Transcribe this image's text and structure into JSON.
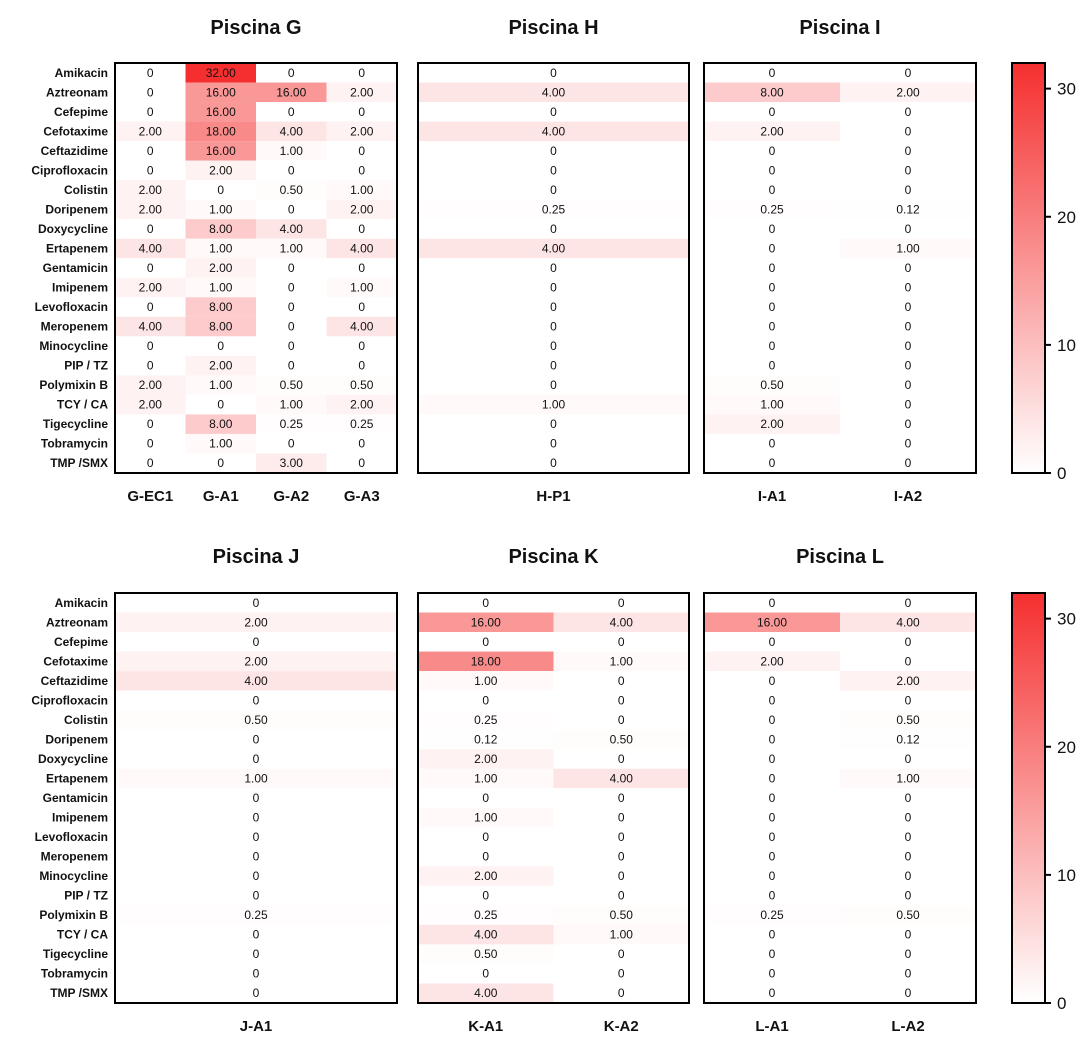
{
  "chart_data": {
    "type": "heatmap",
    "value_format": "two-decimal, zero shown as 0",
    "colormap": {
      "low": "#ffffff",
      "high": "#f52f2f"
    },
    "colorbar": {
      "range": [
        0,
        32
      ],
      "ticks": [
        0,
        10,
        20,
        30
      ]
    },
    "drugs": [
      "Amikacin",
      "Aztreonam",
      "Cefepime",
      "Cefotaxime",
      "Ceftazidime",
      "Ciprofloxacin",
      "Colistin",
      "Doripenem",
      "Doxycycline",
      "Ertapenem",
      "Gentamicin",
      "Imipenem",
      "Levofloxacin",
      "Meropenem",
      "Minocycline",
      "PIP / TZ",
      "Polymixin B",
      "TCY / CA",
      "Tigecycline",
      "Tobramycin",
      "TMP /SMX"
    ],
    "panels": [
      {
        "title": "Piscina G",
        "columns": [
          "G-EC1",
          "G-A1",
          "G-A2",
          "G-A3"
        ],
        "values": [
          [
            0,
            32,
            0,
            0
          ],
          [
            0,
            16,
            16,
            2
          ],
          [
            0,
            16,
            0,
            0
          ],
          [
            2,
            18,
            4,
            2
          ],
          [
            0,
            16,
            1,
            0
          ],
          [
            0,
            2,
            0,
            0
          ],
          [
            2,
            0,
            0.5,
            1
          ],
          [
            2,
            1,
            0,
            2
          ],
          [
            0,
            8,
            4,
            0
          ],
          [
            4,
            1,
            1,
            4
          ],
          [
            0,
            2,
            0,
            0
          ],
          [
            2,
            1,
            0,
            1
          ],
          [
            0,
            8,
            0,
            0
          ],
          [
            4,
            8,
            0,
            4
          ],
          [
            0,
            0,
            0,
            0
          ],
          [
            0,
            2,
            0,
            0
          ],
          [
            2,
            1,
            0.5,
            0.5
          ],
          [
            2,
            0,
            1,
            2
          ],
          [
            0,
            8,
            0.25,
            0.25
          ],
          [
            0,
            1,
            0,
            0
          ],
          [
            0,
            0,
            3,
            0
          ]
        ]
      },
      {
        "title": "Piscina H",
        "columns": [
          "H-P1"
        ],
        "values": [
          [
            0
          ],
          [
            4
          ],
          [
            0
          ],
          [
            4
          ],
          [
            0
          ],
          [
            0
          ],
          [
            0
          ],
          [
            0.25
          ],
          [
            0
          ],
          [
            4
          ],
          [
            0
          ],
          [
            0
          ],
          [
            0
          ],
          [
            0
          ],
          [
            0
          ],
          [
            0
          ],
          [
            0
          ],
          [
            1
          ],
          [
            0
          ],
          [
            0
          ],
          [
            0
          ]
        ]
      },
      {
        "title": "Piscina I",
        "columns": [
          "I-A1",
          "I-A2"
        ],
        "values": [
          [
            0,
            0
          ],
          [
            8,
            2
          ],
          [
            0,
            0
          ],
          [
            2,
            0
          ],
          [
            0,
            0
          ],
          [
            0,
            0
          ],
          [
            0,
            0
          ],
          [
            0.25,
            0.12
          ],
          [
            0,
            0
          ],
          [
            0,
            1
          ],
          [
            0,
            0
          ],
          [
            0,
            0
          ],
          [
            0,
            0
          ],
          [
            0,
            0
          ],
          [
            0,
            0
          ],
          [
            0,
            0
          ],
          [
            0.5,
            0
          ],
          [
            1,
            0
          ],
          [
            2,
            0
          ],
          [
            0,
            0
          ],
          [
            0,
            0
          ]
        ]
      },
      {
        "title": "Piscina J",
        "columns": [
          "J-A1"
        ],
        "values": [
          [
            0
          ],
          [
            2
          ],
          [
            0
          ],
          [
            2
          ],
          [
            4
          ],
          [
            0
          ],
          [
            0.5
          ],
          [
            0
          ],
          [
            0
          ],
          [
            1
          ],
          [
            0
          ],
          [
            0
          ],
          [
            0
          ],
          [
            0
          ],
          [
            0
          ],
          [
            0
          ],
          [
            0.25
          ],
          [
            0
          ],
          [
            0
          ],
          [
            0
          ],
          [
            0
          ]
        ]
      },
      {
        "title": "Piscina K",
        "columns": [
          "K-A1",
          "K-A2"
        ],
        "values": [
          [
            0,
            0
          ],
          [
            16,
            4
          ],
          [
            0,
            0
          ],
          [
            18,
            1
          ],
          [
            1,
            0
          ],
          [
            0,
            0
          ],
          [
            0.25,
            0
          ],
          [
            0.12,
            0.5
          ],
          [
            2,
            0
          ],
          [
            1,
            4
          ],
          [
            0,
            0
          ],
          [
            1,
            0
          ],
          [
            0,
            0
          ],
          [
            0,
            0
          ],
          [
            2,
            0
          ],
          [
            0,
            0
          ],
          [
            0.25,
            0.5
          ],
          [
            4,
            1
          ],
          [
            0.5,
            0
          ],
          [
            0,
            0
          ],
          [
            4,
            0
          ]
        ]
      },
      {
        "title": "Piscina L",
        "columns": [
          "L-A1",
          "L-A2"
        ],
        "values": [
          [
            0,
            0
          ],
          [
            16,
            4
          ],
          [
            0,
            0
          ],
          [
            2,
            0
          ],
          [
            0,
            2
          ],
          [
            0,
            0
          ],
          [
            0,
            0.5
          ],
          [
            0,
            0.12
          ],
          [
            0,
            0
          ],
          [
            0,
            1
          ],
          [
            0,
            0
          ],
          [
            0,
            0
          ],
          [
            0,
            0
          ],
          [
            0,
            0
          ],
          [
            0,
            0
          ],
          [
            0,
            0
          ],
          [
            0.25,
            0.5
          ],
          [
            0,
            0
          ],
          [
            0,
            0
          ],
          [
            0,
            0
          ],
          [
            0,
            0
          ]
        ]
      }
    ]
  }
}
